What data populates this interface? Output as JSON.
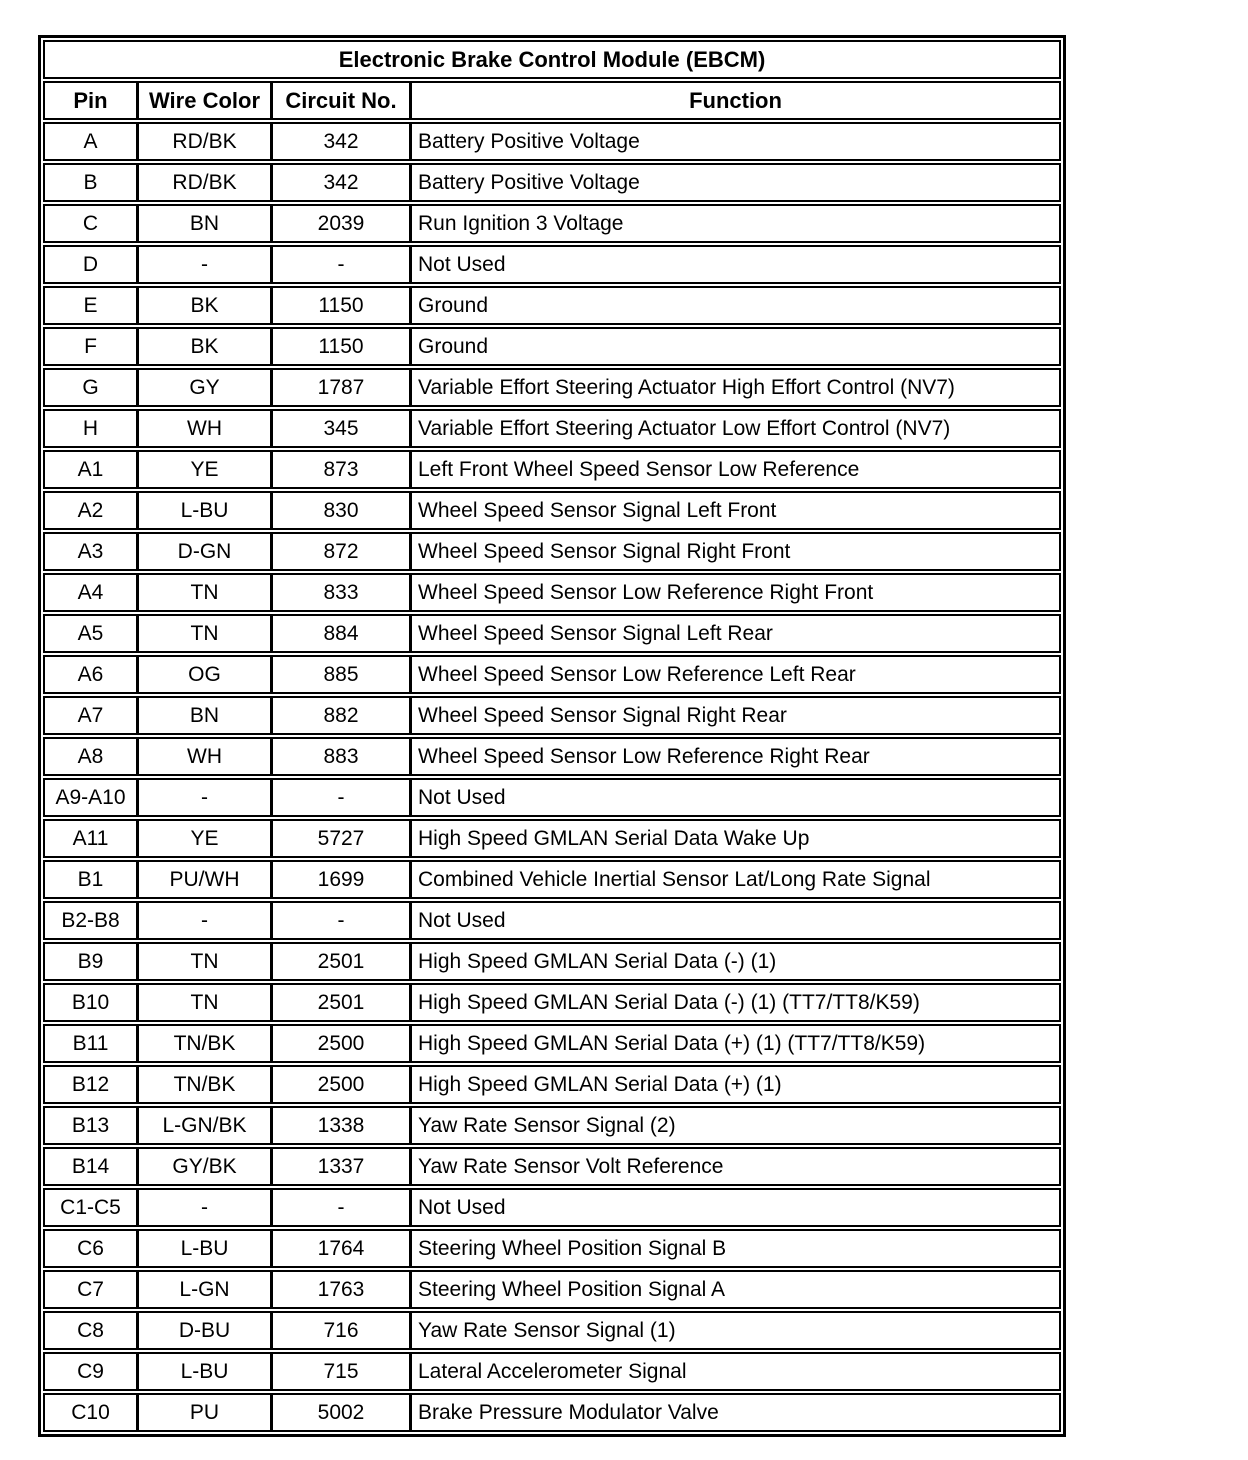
{
  "table": {
    "title": "Electronic Brake Control Module (EBCM)",
    "columns": [
      "Pin",
      "Wire Color",
      "Circuit No.",
      "Function"
    ],
    "rows": [
      {
        "pin": "A",
        "wire_color": "RD/BK",
        "circuit_no": "342",
        "function": "Battery Positive Voltage"
      },
      {
        "pin": "B",
        "wire_color": "RD/BK",
        "circuit_no": "342",
        "function": "Battery Positive Voltage"
      },
      {
        "pin": "C",
        "wire_color": "BN",
        "circuit_no": "2039",
        "function": "Run Ignition 3 Voltage"
      },
      {
        "pin": "D",
        "wire_color": "-",
        "circuit_no": "-",
        "function": "Not Used"
      },
      {
        "pin": "E",
        "wire_color": "BK",
        "circuit_no": "1150",
        "function": "Ground"
      },
      {
        "pin": "F",
        "wire_color": "BK",
        "circuit_no": "1150",
        "function": "Ground"
      },
      {
        "pin": "G",
        "wire_color": "GY",
        "circuit_no": "1787",
        "function": "Variable Effort Steering Actuator High Effort Control (NV7)"
      },
      {
        "pin": "H",
        "wire_color": "WH",
        "circuit_no": "345",
        "function": "Variable Effort Steering Actuator Low Effort Control (NV7)"
      },
      {
        "pin": "A1",
        "wire_color": "YE",
        "circuit_no": "873",
        "function": "Left Front Wheel Speed Sensor Low Reference"
      },
      {
        "pin": "A2",
        "wire_color": "L-BU",
        "circuit_no": "830",
        "function": "Wheel Speed Sensor Signal Left Front"
      },
      {
        "pin": "A3",
        "wire_color": "D-GN",
        "circuit_no": "872",
        "function": "Wheel Speed Sensor Signal Right Front"
      },
      {
        "pin": "A4",
        "wire_color": "TN",
        "circuit_no": "833",
        "function": "Wheel Speed Sensor Low Reference Right Front"
      },
      {
        "pin": "A5",
        "wire_color": "TN",
        "circuit_no": "884",
        "function": "Wheel Speed Sensor Signal Left Rear"
      },
      {
        "pin": "A6",
        "wire_color": "OG",
        "circuit_no": "885",
        "function": "Wheel Speed Sensor Low Reference Left Rear"
      },
      {
        "pin": "A7",
        "wire_color": "BN",
        "circuit_no": "882",
        "function": "Wheel Speed Sensor Signal Right Rear"
      },
      {
        "pin": "A8",
        "wire_color": "WH",
        "circuit_no": "883",
        "function": "Wheel Speed Sensor Low Reference Right Rear"
      },
      {
        "pin": "A9-A10",
        "wire_color": "-",
        "circuit_no": "-",
        "function": "Not Used"
      },
      {
        "pin": "A11",
        "wire_color": "YE",
        "circuit_no": "5727",
        "function": "High Speed GMLAN Serial Data Wake Up"
      },
      {
        "pin": "B1",
        "wire_color": "PU/WH",
        "circuit_no": "1699",
        "function": "Combined Vehicle Inertial Sensor Lat/Long Rate Signal"
      },
      {
        "pin": "B2-B8",
        "wire_color": "-",
        "circuit_no": "-",
        "function": "Not Used"
      },
      {
        "pin": "B9",
        "wire_color": "TN",
        "circuit_no": "2501",
        "function": "High Speed GMLAN Serial Data (-) (1)"
      },
      {
        "pin": "B10",
        "wire_color": "TN",
        "circuit_no": "2501",
        "function": "High Speed GMLAN Serial Data (-) (1) (TT7/TT8/K59)"
      },
      {
        "pin": "B11",
        "wire_color": "TN/BK",
        "circuit_no": "2500",
        "function": "High Speed GMLAN Serial Data (+) (1) (TT7/TT8/K59)"
      },
      {
        "pin": "B12",
        "wire_color": "TN/BK",
        "circuit_no": "2500",
        "function": "High Speed GMLAN Serial Data (+) (1)"
      },
      {
        "pin": "B13",
        "wire_color": "L-GN/BK",
        "circuit_no": "1338",
        "function": "Yaw Rate Sensor Signal (2)"
      },
      {
        "pin": "B14",
        "wire_color": "GY/BK",
        "circuit_no": "1337",
        "function": "Yaw Rate Sensor Volt Reference"
      },
      {
        "pin": "C1-C5",
        "wire_color": "-",
        "circuit_no": "-",
        "function": "Not Used"
      },
      {
        "pin": "C6",
        "wire_color": "L-BU",
        "circuit_no": "1764",
        "function": "Steering Wheel Position Signal B"
      },
      {
        "pin": "C7",
        "wire_color": "L-GN",
        "circuit_no": "1763",
        "function": "Steering Wheel Position Signal A"
      },
      {
        "pin": "C8",
        "wire_color": "D-BU",
        "circuit_no": "716",
        "function": "Yaw Rate Sensor Signal (1)"
      },
      {
        "pin": "C9",
        "wire_color": "L-BU",
        "circuit_no": "715",
        "function": "Lateral Accelerometer Signal"
      },
      {
        "pin": "C10",
        "wire_color": "PU",
        "circuit_no": "5002",
        "function": "Brake Pressure Modulator Valve"
      }
    ]
  }
}
